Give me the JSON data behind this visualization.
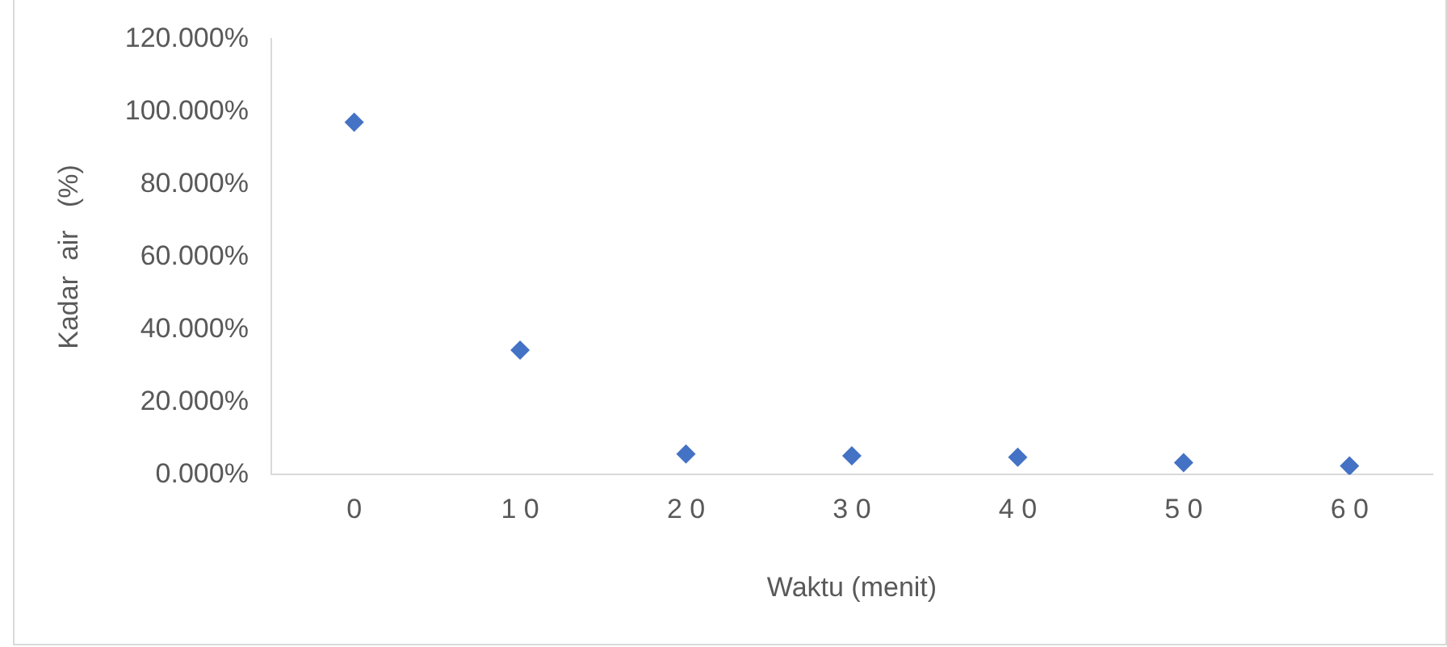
{
  "chart_data": {
    "type": "scatter",
    "xlabel": "Waktu (menit)",
    "ylabel": "Kadar  air   (%)",
    "categories": [
      "0",
      "1 0",
      "2 0",
      "3 0",
      "4 0",
      "5 0",
      "6 0"
    ],
    "values": [
      97.1,
      34.3,
      5.7,
      5.2,
      4.8,
      3.3,
      2.4
    ],
    "color": "#4472c4",
    "marker": "diamond",
    "ylim": [
      0,
      120
    ],
    "yticks": [
      {
        "value": 0,
        "label": "0.000%"
      },
      {
        "value": 20,
        "label": "20.000%"
      },
      {
        "value": 40,
        "label": "40.000%"
      },
      {
        "value": 60,
        "label": "60.000%"
      },
      {
        "value": 80,
        "label": "80.000%"
      },
      {
        "value": 100,
        "label": "100.000%"
      },
      {
        "value": 120,
        "label": "120.000%"
      }
    ],
    "grid": false,
    "legend": false
  }
}
